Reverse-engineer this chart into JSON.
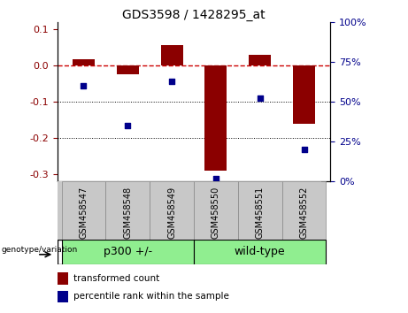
{
  "title": "GDS3598 / 1428295_at",
  "samples": [
    "GSM458547",
    "GSM458548",
    "GSM458549",
    "GSM458550",
    "GSM458551",
    "GSM458552"
  ],
  "transformed_count": [
    0.018,
    -0.025,
    0.055,
    -0.29,
    0.03,
    -0.16
  ],
  "percentile_rank": [
    60,
    35,
    63,
    2,
    52,
    20
  ],
  "groups": [
    {
      "label": "p300 +/-",
      "start": 0,
      "end": 3
    },
    {
      "label": "wild-type",
      "start": 3,
      "end": 6
    }
  ],
  "ylim_left": [
    -0.32,
    0.12
  ],
  "ylim_right": [
    0,
    100
  ],
  "yticks_left": [
    -0.3,
    -0.2,
    -0.1,
    0.0,
    0.1
  ],
  "yticks_right": [
    0,
    25,
    50,
    75,
    100
  ],
  "bar_color": "#8B0000",
  "dot_color": "#00008B",
  "zeroline_color": "#CC0000",
  "background_plot": "#FFFFFF",
  "background_label": "#C8C8C8",
  "background_group": "#90EE90",
  "legend_red_label": "transformed count",
  "legend_blue_label": "percentile rank within the sample",
  "genotype_label": "genotype/variation"
}
